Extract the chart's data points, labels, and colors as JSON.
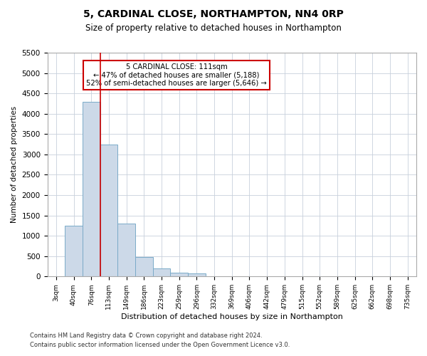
{
  "title": "5, CARDINAL CLOSE, NORTHAMPTON, NN4 0RP",
  "subtitle": "Size of property relative to detached houses in Northampton",
  "xlabel": "Distribution of detached houses by size in Northampton",
  "ylabel": "Number of detached properties",
  "footnote1": "Contains HM Land Registry data © Crown copyright and database right 2024.",
  "footnote2": "Contains public sector information licensed under the Open Government Licence v3.0.",
  "bar_color": "#ccd9e8",
  "bar_edge_color": "#7aaac8",
  "annotation_box_color": "#cc0000",
  "vline_color": "#cc0000",
  "property_label": "5 CARDINAL CLOSE: 111sqm",
  "annotation_line1": "← 47% of detached houses are smaller (5,188)",
  "annotation_line2": "52% of semi-detached houses are larger (5,646) →",
  "categories": [
    "3sqm",
    "40sqm",
    "76sqm",
    "113sqm",
    "149sqm",
    "186sqm",
    "223sqm",
    "259sqm",
    "296sqm",
    "332sqm",
    "369sqm",
    "406sqm",
    "442sqm",
    "479sqm",
    "515sqm",
    "552sqm",
    "589sqm",
    "625sqm",
    "662sqm",
    "698sqm",
    "735sqm"
  ],
  "bar_heights": [
    0,
    1250,
    4300,
    3250,
    1300,
    480,
    200,
    100,
    70,
    0,
    0,
    0,
    0,
    0,
    0,
    0,
    0,
    0,
    0,
    0,
    0
  ],
  "ylim": [
    0,
    5500
  ],
  "yticks": [
    0,
    500,
    1000,
    1500,
    2000,
    2500,
    3000,
    3500,
    4000,
    4500,
    5000,
    5500
  ],
  "vline_x_index": 2.5,
  "background_color": "#ffffff",
  "grid_color": "#c8d0dc"
}
